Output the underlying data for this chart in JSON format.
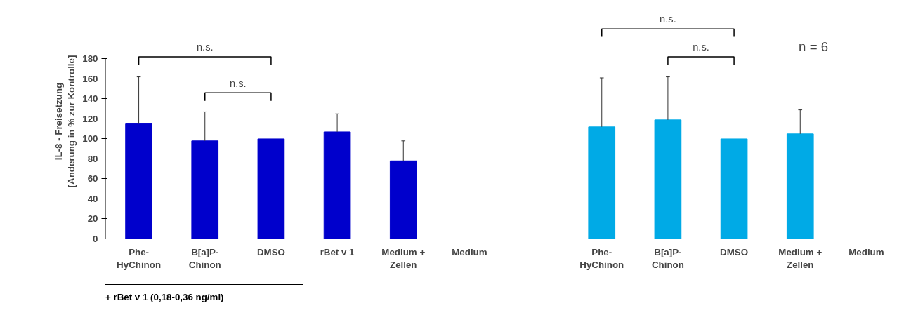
{
  "chart_data": {
    "type": "bar",
    "ylabel": "IL-8 - Freisetzung\n[Änderung in % zur Kontrolle]",
    "categories": [
      "Phe-\nHyChinon",
      "B[a]P-\nChinon",
      "DMSO",
      "rBet v 1",
      "Medium +\nZellen",
      "Medium",
      null,
      "Phe-\nHyChinon",
      "B[a]P-\nChinon",
      "DMSO",
      "Medium +\nZellen",
      "Medium"
    ],
    "values": [
      115,
      98,
      100,
      107,
      78,
      0,
      null,
      112,
      119,
      100,
      105,
      0
    ],
    "colors": [
      "#0000cc",
      "#0000cc",
      "#0000cc",
      "#0000cc",
      "#0000cc",
      "#0000cc",
      "#0000cc",
      "#00aae6",
      "#00aae6",
      "#00aae6",
      "#00aae6",
      "#00aae6"
    ],
    "errors": [
      [
        115,
        162
      ],
      [
        98,
        127
      ],
      null,
      [
        107,
        125
      ],
      [
        78,
        98
      ],
      null,
      null,
      [
        112,
        161
      ],
      [
        119,
        162
      ],
      null,
      [
        105,
        129
      ],
      null
    ],
    "ylim": [
      0,
      180
    ],
    "yticks": [
      0,
      20,
      40,
      60,
      80,
      100,
      120,
      140,
      160,
      180
    ],
    "grid": false,
    "annotations": [
      "n.s.",
      "n.s.",
      "n.s.",
      "n.s.",
      "n = 6",
      "+ rBet v 1 (0,18-0,36 ng/ml)"
    ]
  }
}
